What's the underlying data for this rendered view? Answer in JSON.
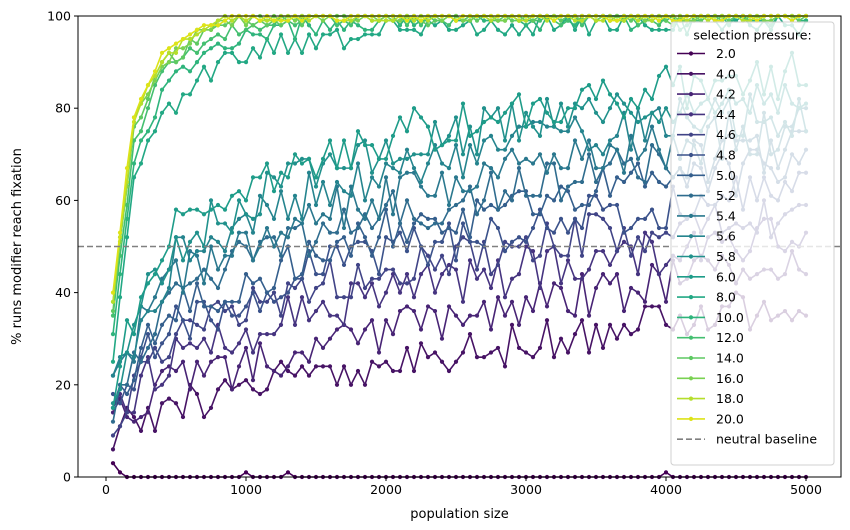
{
  "chart_data": {
    "type": "line",
    "xlabel": "population size",
    "ylabel": "% runs modifier reach fixation",
    "xlim": [
      -200,
      5250
    ],
    "ylim": [
      0,
      100
    ],
    "x_ticks": [
      0,
      1000,
      2000,
      3000,
      4000,
      5000
    ],
    "y_ticks": [
      0,
      20,
      40,
      60,
      80,
      100
    ],
    "grid": false,
    "legend_title": "selection pressure:",
    "legend_position": "right, inside plot",
    "colors": {
      "2.0": "#440154",
      "4.0": "#471365",
      "4.2": "#482475",
      "4.4": "#463480",
      "4.6": "#414487",
      "4.8": "#3b528b",
      "5.0": "#355f8d",
      "5.2": "#2f6c8e",
      "5.4": "#2a788e",
      "5.6": "#25848e",
      "5.8": "#21918c",
      "6.0": "#1e9c89",
      "8.0": "#22a884",
      "10.0": "#2fb47c",
      "12.0": "#44bf70",
      "14.0": "#5ec962",
      "16.0": "#7ad151",
      "18.0": "#b5de2b",
      "20.0": "#dde318",
      "baseline": "#808080"
    },
    "x": [
      50,
      100,
      150,
      200,
      250,
      300,
      350,
      400,
      450,
      500,
      550,
      600,
      650,
      700,
      750,
      800,
      850,
      900,
      950,
      1000,
      1050,
      1100,
      1150,
      1200,
      1250,
      1300,
      1350,
      1400,
      1450,
      1500,
      1550,
      1600,
      1650,
      1700,
      1750,
      1800,
      1850,
      1900,
      1950,
      2000,
      2050,
      2100,
      2150,
      2200,
      2250,
      2300,
      2350,
      2400,
      2450,
      2500,
      2550,
      2600,
      2650,
      2700,
      2750,
      2800,
      2850,
      2900,
      2950,
      3000,
      3050,
      3100,
      3150,
      3200,
      3250,
      3300,
      3350,
      3400,
      3450,
      3500,
      3550,
      3600,
      3650,
      3700,
      3750,
      3800,
      3850,
      3900,
      3950,
      4000,
      4050,
      4100,
      4150,
      4200,
      4250,
      4300,
      4350,
      4400,
      4450,
      4500,
      4550,
      4600,
      4650,
      4700,
      4750,
      4800,
      4850,
      4900,
      4950,
      5000
    ],
    "series": [
      {
        "name": "2.0",
        "anchors": [
          [
            50,
            3
          ],
          [
            100,
            1.5
          ],
          [
            150,
            0.3
          ],
          [
            200,
            0
          ],
          [
            5000,
            0
          ]
        ],
        "amp": 0.1,
        "seed": 2,
        "spikes": [
          [
            1000,
            1
          ],
          [
            1300,
            1
          ],
          [
            4000,
            1
          ]
        ]
      },
      {
        "name": "4.0",
        "anchors": [
          [
            50,
            10
          ],
          [
            300,
            13
          ],
          [
            500,
            15
          ],
          [
            1000,
            19
          ],
          [
            1500,
            23
          ],
          [
            2000,
            25
          ],
          [
            2500,
            27
          ],
          [
            3000,
            29
          ],
          [
            3500,
            31
          ],
          [
            4000,
            33
          ],
          [
            4500,
            36
          ],
          [
            5000,
            37
          ]
        ],
        "amp": 4.5,
        "seed": 11
      },
      {
        "name": "4.2",
        "anchors": [
          [
            50,
            11
          ],
          [
            300,
            17
          ],
          [
            500,
            20
          ],
          [
            1000,
            25
          ],
          [
            1500,
            29
          ],
          [
            2000,
            32
          ],
          [
            2500,
            35
          ],
          [
            3000,
            37
          ],
          [
            3500,
            40
          ],
          [
            4000,
            42
          ],
          [
            4500,
            44
          ],
          [
            5000,
            45
          ]
        ],
        "amp": 5,
        "seed": 23
      },
      {
        "name": "4.4",
        "anchors": [
          [
            50,
            12
          ],
          [
            300,
            22
          ],
          [
            500,
            26
          ],
          [
            1000,
            31
          ],
          [
            1500,
            36
          ],
          [
            2000,
            40
          ],
          [
            2500,
            42
          ],
          [
            3000,
            45
          ],
          [
            3500,
            47
          ],
          [
            4000,
            49
          ],
          [
            4500,
            51
          ],
          [
            5000,
            53
          ]
        ],
        "amp": 5,
        "seed": 37
      },
      {
        "name": "4.6",
        "anchors": [
          [
            50,
            13
          ],
          [
            300,
            26
          ],
          [
            500,
            30
          ],
          [
            1000,
            36
          ],
          [
            1500,
            41
          ],
          [
            2000,
            44
          ],
          [
            2500,
            47
          ],
          [
            3000,
            49
          ],
          [
            3500,
            52
          ],
          [
            4000,
            54
          ],
          [
            4500,
            56
          ],
          [
            5000,
            58
          ]
        ],
        "amp": 5,
        "seed": 41
      },
      {
        "name": "4.8",
        "anchors": [
          [
            50,
            14
          ],
          [
            300,
            28
          ],
          [
            500,
            33
          ],
          [
            1000,
            39
          ],
          [
            1500,
            45
          ],
          [
            2000,
            49
          ],
          [
            2500,
            52
          ],
          [
            3000,
            54
          ],
          [
            3500,
            57
          ],
          [
            4000,
            59
          ],
          [
            4500,
            62
          ],
          [
            5000,
            64
          ]
        ],
        "amp": 5,
        "seed": 53
      },
      {
        "name": "5.0",
        "anchors": [
          [
            50,
            15
          ],
          [
            300,
            30
          ],
          [
            500,
            36
          ],
          [
            1000,
            43
          ],
          [
            1500,
            49
          ],
          [
            2000,
            53
          ],
          [
            2500,
            56
          ],
          [
            3000,
            59
          ],
          [
            3500,
            62
          ],
          [
            4000,
            64
          ],
          [
            4500,
            66
          ],
          [
            5000,
            68
          ]
        ],
        "amp": 5,
        "seed": 61
      },
      {
        "name": "5.2",
        "anchors": [
          [
            50,
            16
          ],
          [
            300,
            33
          ],
          [
            500,
            40
          ],
          [
            1000,
            47
          ],
          [
            1500,
            53
          ],
          [
            2000,
            57
          ],
          [
            2500,
            60
          ],
          [
            3000,
            63
          ],
          [
            3500,
            66
          ],
          [
            4000,
            68
          ],
          [
            4500,
            70
          ],
          [
            5000,
            71
          ]
        ],
        "amp": 5,
        "seed": 71
      },
      {
        "name": "5.4",
        "anchors": [
          [
            50,
            17
          ],
          [
            300,
            36
          ],
          [
            500,
            43
          ],
          [
            1000,
            51
          ],
          [
            1500,
            57
          ],
          [
            2000,
            61
          ],
          [
            2500,
            64
          ],
          [
            3000,
            67
          ],
          [
            3500,
            70
          ],
          [
            4000,
            72
          ],
          [
            4500,
            74
          ],
          [
            5000,
            75
          ]
        ],
        "amp": 5,
        "seed": 83
      },
      {
        "name": "5.6",
        "anchors": [
          [
            50,
            18
          ],
          [
            300,
            39
          ],
          [
            500,
            47
          ],
          [
            1000,
            56
          ],
          [
            1500,
            62
          ],
          [
            2000,
            66
          ],
          [
            2500,
            69
          ],
          [
            3000,
            72
          ],
          [
            3500,
            75
          ],
          [
            4000,
            77
          ],
          [
            4500,
            78
          ],
          [
            5000,
            79
          ]
        ],
        "amp": 5,
        "seed": 97
      },
      {
        "name": "5.8",
        "anchors": [
          [
            50,
            19
          ],
          [
            300,
            42
          ],
          [
            500,
            50
          ],
          [
            1000,
            60
          ],
          [
            1500,
            66
          ],
          [
            2000,
            70
          ],
          [
            2500,
            74
          ],
          [
            3000,
            77
          ],
          [
            3500,
            79
          ],
          [
            4000,
            81
          ],
          [
            4500,
            83
          ],
          [
            5000,
            84
          ]
        ],
        "amp": 5,
        "seed": 101
      },
      {
        "name": "6.0",
        "anchors": [
          [
            50,
            20
          ],
          [
            300,
            45
          ],
          [
            500,
            54
          ],
          [
            1000,
            63
          ],
          [
            1500,
            69
          ],
          [
            2000,
            74
          ],
          [
            2500,
            77
          ],
          [
            3000,
            80
          ],
          [
            3500,
            82
          ],
          [
            4000,
            84
          ],
          [
            4500,
            86
          ],
          [
            5000,
            87
          ]
        ],
        "amp": 5,
        "seed": 113
      },
      {
        "name": "8.0",
        "anchors": [
          [
            50,
            28
          ],
          [
            200,
            62
          ],
          [
            400,
            79
          ],
          [
            700,
            88
          ],
          [
            1000,
            92
          ],
          [
            1500,
            95
          ],
          [
            2000,
            97
          ],
          [
            3000,
            98.5
          ],
          [
            5000,
            99
          ]
        ],
        "amp": 2.8,
        "seed": 127
      },
      {
        "name": "10.0",
        "anchors": [
          [
            50,
            32
          ],
          [
            200,
            68
          ],
          [
            400,
            84
          ],
          [
            700,
            92
          ],
          [
            1000,
            96
          ],
          [
            1500,
            98
          ],
          [
            2000,
            99
          ],
          [
            5000,
            99.5
          ]
        ],
        "amp": 2.2,
        "seed": 131
      },
      {
        "name": "12.0",
        "anchors": [
          [
            50,
            35
          ],
          [
            200,
            72
          ],
          [
            400,
            87
          ],
          [
            700,
            94
          ],
          [
            1000,
            98
          ],
          [
            1500,
            99.3
          ],
          [
            2000,
            99.6
          ],
          [
            5000,
            99.8
          ]
        ],
        "amp": 1.8,
        "seed": 149
      },
      {
        "name": "14.0",
        "anchors": [
          [
            50,
            37
          ],
          [
            200,
            75
          ],
          [
            400,
            89
          ],
          [
            700,
            96
          ],
          [
            1000,
            99
          ],
          [
            1500,
            99.6
          ],
          [
            5000,
            100
          ]
        ],
        "amp": 1.5,
        "seed": 157
      },
      {
        "name": "16.0",
        "anchors": [
          [
            50,
            38
          ],
          [
            200,
            77
          ],
          [
            400,
            90
          ],
          [
            700,
            97
          ],
          [
            1000,
            99.5
          ],
          [
            1500,
            99.8
          ],
          [
            5000,
            100
          ]
        ],
        "amp": 1.2,
        "seed": 163
      },
      {
        "name": "18.0",
        "anchors": [
          [
            50,
            39
          ],
          [
            200,
            78
          ],
          [
            400,
            91
          ],
          [
            700,
            97.5
          ],
          [
            1000,
            99.6
          ],
          [
            5000,
            100
          ]
        ],
        "amp": 1.0,
        "seed": 173
      },
      {
        "name": "20.0",
        "anchors": [
          [
            50,
            40
          ],
          [
            200,
            79
          ],
          [
            400,
            92
          ],
          [
            700,
            98
          ],
          [
            1000,
            99.7
          ],
          [
            5000,
            100
          ]
        ],
        "amp": 0.9,
        "seed": 181
      }
    ],
    "baseline": {
      "name": "neutral baseline",
      "y": 50
    }
  }
}
